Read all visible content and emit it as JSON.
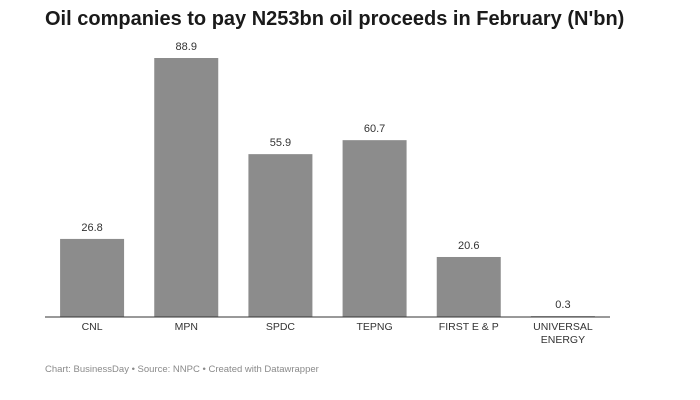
{
  "chart_data": {
    "type": "bar",
    "title": "Oil companies to pay N253bn oil proceeds in February (N'bn)",
    "categories": [
      "CNL",
      "MPN",
      "SPDC",
      "TEPNG",
      "FIRST E & P",
      "UNIVERSAL ENERGY"
    ],
    "values": [
      26.8,
      88.9,
      55.9,
      60.7,
      20.6,
      0.3
    ],
    "color": "#8c8c8c",
    "footer": "Chart: BusinessDay • Source: NNPC • Created with Datawrapper"
  }
}
